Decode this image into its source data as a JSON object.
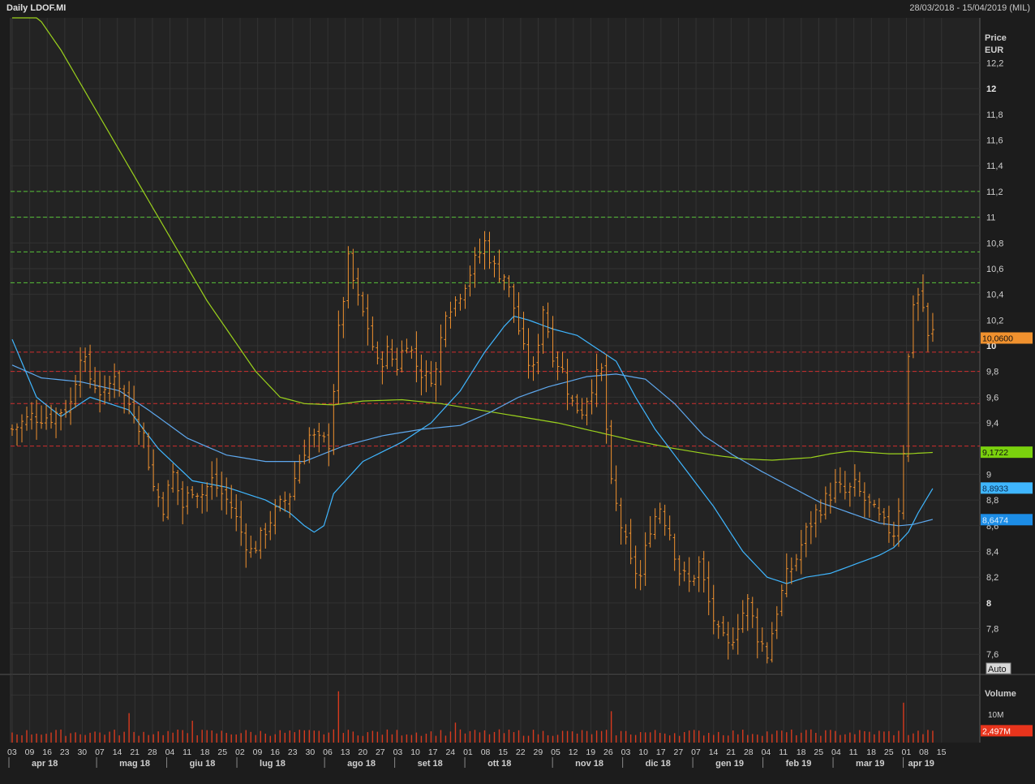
{
  "header": {
    "title": "Daily LDOF.MI",
    "range": "28/03/2018 - 15/04/2019 (MIL)"
  },
  "axis": {
    "price_title": "Price",
    "price_unit": "EUR",
    "auto_label": "Auto",
    "volume_title": "Volume",
    "volume_tick": "10M"
  },
  "colors": {
    "bars": "#f0912e",
    "volume": "#d83a1e",
    "ma_short": "#3fb6ff",
    "ma_mid": "#5ea8ee",
    "ma_long": "#9bd21c",
    "resistance": "#58c23a",
    "support": "#cf2e2e",
    "grid": "#333333"
  },
  "chart_data": {
    "type": "ohlc",
    "instrument": "LDOF.MI",
    "period": "Daily",
    "date_range": [
      "28/03/2018",
      "15/04/2019"
    ],
    "y_ticks": [
      {
        "label": "12,2",
        "value": 12.2
      },
      {
        "label": "12",
        "value": 12.0,
        "bold": true
      },
      {
        "label": "11,8",
        "value": 11.8
      },
      {
        "label": "11,6",
        "value": 11.6
      },
      {
        "label": "11,4",
        "value": 11.4
      },
      {
        "label": "11,2",
        "value": 11.2
      },
      {
        "label": "11",
        "value": 11.0
      },
      {
        "label": "10,8",
        "value": 10.8
      },
      {
        "label": "10,6",
        "value": 10.6
      },
      {
        "label": "10,4",
        "value": 10.4
      },
      {
        "label": "10,2",
        "value": 10.2
      },
      {
        "label": "10",
        "value": 10.0,
        "bold": true
      },
      {
        "label": "9,8",
        "value": 9.8
      },
      {
        "label": "9,6",
        "value": 9.6
      },
      {
        "label": "9,4",
        "value": 9.4
      },
      {
        "label": "9",
        "value": 9.0
      },
      {
        "label": "8,8",
        "value": 8.8
      },
      {
        "label": "8,6",
        "value": 8.6
      },
      {
        "label": "8,4",
        "value": 8.4
      },
      {
        "label": "8,2",
        "value": 8.2
      },
      {
        "label": "8",
        "value": 8.0,
        "bold": true
      },
      {
        "label": "7,8",
        "value": 7.8
      },
      {
        "label": "7,6",
        "value": 7.6
      }
    ],
    "ylim": [
      7.45,
      12.55
    ],
    "price_path": [
      [
        0,
        9.35
      ],
      [
        4,
        9.45
      ],
      [
        8,
        9.45
      ],
      [
        12,
        9.55
      ],
      [
        14,
        9.95
      ],
      [
        16,
        9.75
      ],
      [
        19,
        9.6
      ],
      [
        21,
        9.8
      ],
      [
        23,
        9.6
      ],
      [
        25,
        9.5
      ],
      [
        27,
        9.3
      ],
      [
        29,
        8.9
      ],
      [
        31,
        8.75
      ],
      [
        33,
        9.0
      ],
      [
        35,
        8.75
      ],
      [
        37,
        8.9
      ],
      [
        39,
        8.85
      ],
      [
        41,
        8.95
      ],
      [
        43,
        8.85
      ],
      [
        45,
        8.75
      ],
      [
        47,
        8.55
      ],
      [
        49,
        8.4
      ],
      [
        51,
        8.5
      ],
      [
        53,
        8.65
      ],
      [
        55,
        8.75
      ],
      [
        57,
        8.85
      ],
      [
        59,
        9.1
      ],
      [
        61,
        9.3
      ],
      [
        63,
        9.25
      ],
      [
        65,
        9.25
      ],
      [
        67,
        10.1
      ],
      [
        69,
        10.65
      ],
      [
        71,
        10.35
      ],
      [
        73,
        10.15
      ],
      [
        75,
        9.85
      ],
      [
        77,
        9.95
      ],
      [
        79,
        9.85
      ],
      [
        81,
        10.05
      ],
      [
        83,
        9.85
      ],
      [
        85,
        9.75
      ],
      [
        87,
        9.8
      ],
      [
        89,
        10.3
      ],
      [
        91,
        10.35
      ],
      [
        93,
        10.5
      ],
      [
        95,
        10.65
      ],
      [
        97,
        10.8
      ],
      [
        99,
        10.6
      ],
      [
        101,
        10.55
      ],
      [
        103,
        10.3
      ],
      [
        105,
        9.95
      ],
      [
        107,
        9.8
      ],
      [
        109,
        10.3
      ],
      [
        111,
        9.95
      ],
      [
        113,
        9.8
      ],
      [
        115,
        9.55
      ],
      [
        117,
        9.5
      ],
      [
        119,
        9.7
      ],
      [
        121,
        9.8
      ],
      [
        123,
        8.9
      ],
      [
        125,
        8.6
      ],
      [
        127,
        8.3
      ],
      [
        129,
        8.2
      ],
      [
        131,
        8.6
      ],
      [
        133,
        8.75
      ],
      [
        135,
        8.55
      ],
      [
        137,
        8.25
      ],
      [
        139,
        8.15
      ],
      [
        141,
        8.3
      ],
      [
        143,
        8.0
      ],
      [
        145,
        7.75
      ],
      [
        147,
        7.65
      ],
      [
        149,
        7.85
      ],
      [
        151,
        8.0
      ],
      [
        153,
        7.75
      ],
      [
        155,
        7.6
      ],
      [
        157,
        7.95
      ],
      [
        159,
        8.2
      ],
      [
        161,
        8.35
      ],
      [
        163,
        8.55
      ],
      [
        165,
        8.7
      ],
      [
        167,
        8.8
      ],
      [
        169,
        8.9
      ],
      [
        171,
        8.85
      ],
      [
        173,
        8.9
      ],
      [
        175,
        8.8
      ],
      [
        177,
        8.7
      ],
      [
        179,
        8.6
      ],
      [
        181,
        8.55
      ],
      [
        182,
        8.75
      ],
      [
        183,
        9.2
      ],
      [
        184,
        9.9
      ],
      [
        185,
        10.35
      ],
      [
        186,
        10.4
      ],
      [
        187,
        10.3
      ],
      [
        188,
        10.05
      ],
      [
        189,
        10.1
      ]
    ],
    "last_bar_index": 189,
    "bar_count": 190,
    "ma_short": [
      [
        0,
        10.05
      ],
      [
        5,
        9.6
      ],
      [
        10,
        9.45
      ],
      [
        16,
        9.6
      ],
      [
        24,
        9.5
      ],
      [
        30,
        9.2
      ],
      [
        37,
        8.95
      ],
      [
        44,
        8.9
      ],
      [
        52,
        8.8
      ],
      [
        57,
        8.7
      ],
      [
        60,
        8.6
      ],
      [
        62,
        8.55
      ],
      [
        64,
        8.6
      ],
      [
        66,
        8.85
      ],
      [
        72,
        9.1
      ],
      [
        80,
        9.25
      ],
      [
        86,
        9.4
      ],
      [
        92,
        9.65
      ],
      [
        97,
        9.95
      ],
      [
        101,
        10.15
      ],
      [
        103,
        10.23
      ],
      [
        106,
        10.2
      ],
      [
        111,
        10.13
      ],
      [
        116,
        10.08
      ],
      [
        120,
        9.98
      ],
      [
        124,
        9.88
      ],
      [
        128,
        9.6
      ],
      [
        132,
        9.35
      ],
      [
        138,
        9.05
      ],
      [
        144,
        8.75
      ],
      [
        150,
        8.4
      ],
      [
        155,
        8.2
      ],
      [
        159,
        8.15
      ],
      [
        163,
        8.2
      ],
      [
        168,
        8.23
      ],
      [
        173,
        8.3
      ],
      [
        178,
        8.37
      ],
      [
        181,
        8.43
      ],
      [
        184,
        8.55
      ],
      [
        186,
        8.7
      ],
      [
        189,
        8.89
      ]
    ],
    "ma_mid": [
      [
        0,
        9.85
      ],
      [
        6,
        9.75
      ],
      [
        14,
        9.72
      ],
      [
        22,
        9.65
      ],
      [
        28,
        9.5
      ],
      [
        36,
        9.28
      ],
      [
        44,
        9.15
      ],
      [
        52,
        9.1
      ],
      [
        60,
        9.1
      ],
      [
        68,
        9.22
      ],
      [
        76,
        9.3
      ],
      [
        84,
        9.35
      ],
      [
        92,
        9.38
      ],
      [
        98,
        9.48
      ],
      [
        104,
        9.6
      ],
      [
        110,
        9.68
      ],
      [
        118,
        9.76
      ],
      [
        124,
        9.78
      ],
      [
        130,
        9.74
      ],
      [
        136,
        9.55
      ],
      [
        142,
        9.3
      ],
      [
        148,
        9.15
      ],
      [
        154,
        9.02
      ],
      [
        160,
        8.9
      ],
      [
        166,
        8.78
      ],
      [
        172,
        8.7
      ],
      [
        178,
        8.62
      ],
      [
        182,
        8.6
      ],
      [
        185,
        8.61
      ],
      [
        189,
        8.65
      ]
    ],
    "ma_long": [
      [
        0,
        12.85
      ],
      [
        10,
        12.3
      ],
      [
        20,
        11.65
      ],
      [
        30,
        11.0
      ],
      [
        40,
        10.35
      ],
      [
        50,
        9.8
      ],
      [
        55,
        9.6
      ],
      [
        60,
        9.55
      ],
      [
        66,
        9.54
      ],
      [
        72,
        9.57
      ],
      [
        80,
        9.58
      ],
      [
        88,
        9.55
      ],
      [
        96,
        9.5
      ],
      [
        104,
        9.45
      ],
      [
        112,
        9.4
      ],
      [
        120,
        9.33
      ],
      [
        128,
        9.26
      ],
      [
        136,
        9.2
      ],
      [
        144,
        9.15
      ],
      [
        150,
        9.12
      ],
      [
        156,
        9.11
      ],
      [
        160,
        9.12
      ],
      [
        164,
        9.13
      ],
      [
        168,
        9.16
      ],
      [
        172,
        9.18
      ],
      [
        176,
        9.17
      ],
      [
        180,
        9.16
      ],
      [
        184,
        9.16
      ],
      [
        189,
        9.17
      ]
    ],
    "resistance_levels": [
      11.2,
      11.0,
      10.73,
      10.49
    ],
    "support_levels": [
      9.95,
      9.8,
      9.55,
      9.22
    ],
    "last_values": [
      {
        "label": "10,0600",
        "value": 10.06,
        "bg": "#f0912e",
        "fg": "#111111"
      },
      {
        "label": "9,1722",
        "value": 9.1722,
        "bg": "#7ad10d",
        "fg": "#111111"
      },
      {
        "label": "8,8933",
        "value": 8.8933,
        "bg": "#3fb6ff",
        "fg": "#0a2a4a"
      },
      {
        "label": "8,6474",
        "value": 8.6474,
        "bg": "#1c8de6",
        "fg": "#e0f0ff"
      }
    ],
    "volume": {
      "last_label": "2,497M",
      "last_value": 2.497,
      "ylim": [
        0,
        14
      ],
      "tick_value": 10,
      "spikes": [
        [
          24,
          6.2
        ],
        [
          37,
          4.6
        ],
        [
          67,
          10.8
        ],
        [
          91,
          4.2
        ],
        [
          123,
          6.6
        ],
        [
          183,
          8.4
        ]
      ]
    },
    "x_day_ticks": [
      "03",
      "09",
      "16",
      "23",
      "30",
      "07",
      "14",
      "21",
      "28",
      "04",
      "11",
      "18",
      "25",
      "02",
      "09",
      "16",
      "23",
      "30",
      "06",
      "13",
      "20",
      "27",
      "03",
      "10",
      "17",
      "24",
      "01",
      "08",
      "15",
      "22",
      "29",
      "05",
      "12",
      "19",
      "26",
      "03",
      "10",
      "17",
      "27",
      "07",
      "14",
      "21",
      "28",
      "04",
      "11",
      "18",
      "25",
      "04",
      "11",
      "18",
      "25",
      "01",
      "08",
      "15"
    ],
    "x_months": [
      "apr 18",
      "mag 18",
      "giu 18",
      "lug 18",
      "ago 18",
      "set 18",
      "ott 18",
      "nov 18",
      "dic 18",
      "gen 19",
      "feb 19",
      "mar 19",
      "apr 19"
    ]
  }
}
